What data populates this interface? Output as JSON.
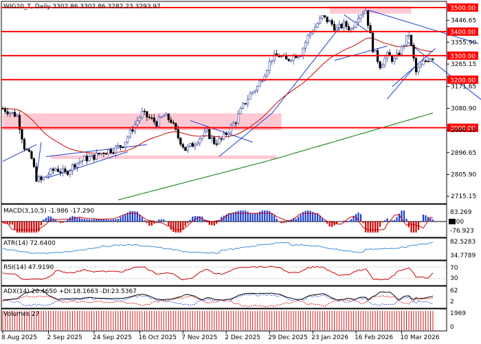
{
  "header": {
    "title": "WIG20_T, Daily  3302.86 3302.86 3282.23 3293.97"
  },
  "colors": {
    "bull": "#2a3a9a",
    "bear": "#000000",
    "support_line": "#ff0000",
    "zone": "#ffc0cb",
    "ema_short": "#cc0000",
    "ema_long": "#007700",
    "trend": "#1a3fd0",
    "macd_hist_pos": "#1a3fd0",
    "macd_hist_neg": "#cc0000",
    "atr_line": "#3a8fdd",
    "rsi_line": "#cc0000",
    "adx_line": "#000000",
    "volume": "#cc0000"
  },
  "price_axis": {
    "ticks": [
      "3446.65",
      "3355.90",
      "3265.15",
      "3171.65",
      "3080.90",
      "2990.15",
      "2896.65",
      "2805.90",
      "2715.15"
    ],
    "labeled_levels": [
      "3500.00",
      "3400.00",
      "3300.00",
      "3200.00",
      "3000.00"
    ]
  },
  "chart_data": {
    "type": "candlestick",
    "title": "WIG20_T, Daily  3302.86 3302.86 3282.23 3293.97",
    "x_dates": [
      "8 Aug 2025",
      "2 Sep 2025",
      "24 Sep 2025",
      "16 Oct 2025",
      "7 Nov 2025",
      "2 Dec 2025",
      "29 Dec 2025",
      "23 Jan 2026",
      "16 Feb 2026",
      "10 Mar 2026"
    ],
    "y_range": [
      2690,
      3520
    ],
    "support_resistance": [
      3500,
      3400,
      3300,
      3200,
      3000
    ],
    "close_path": [
      [
        0,
        3080
      ],
      [
        6,
        3050
      ],
      [
        9,
        2920
      ],
      [
        12,
        2870
      ],
      [
        14,
        2790
      ],
      [
        16,
        2780
      ],
      [
        18,
        2800
      ],
      [
        22,
        2830
      ],
      [
        26,
        2810
      ],
      [
        30,
        2850
      ],
      [
        34,
        2870
      ],
      [
        38,
        2880
      ],
      [
        42,
        2900
      ],
      [
        46,
        2910
      ],
      [
        50,
        2930
      ],
      [
        53,
        2980
      ],
      [
        56,
        3030
      ],
      [
        58,
        3060
      ],
      [
        61,
        3040
      ],
      [
        64,
        3020
      ],
      [
        67,
        3050
      ],
      [
        70,
        3030
      ],
      [
        73,
        2960
      ],
      [
        76,
        2910
      ],
      [
        79,
        2930
      ],
      [
        82,
        2960
      ],
      [
        85,
        2980
      ],
      [
        88,
        2940
      ],
      [
        91,
        2950
      ],
      [
        94,
        2990
      ],
      [
        97,
        3030
      ],
      [
        100,
        3090
      ],
      [
        103,
        3140
      ],
      [
        106,
        3170
      ],
      [
        109,
        3230
      ],
      [
        112,
        3290
      ],
      [
        115,
        3300
      ],
      [
        118,
        3280
      ],
      [
        121,
        3300
      ],
      [
        124,
        3310
      ],
      [
        127,
        3380
      ],
      [
        130,
        3420
      ],
      [
        133,
        3460
      ],
      [
        136,
        3440
      ],
      [
        139,
        3410
      ],
      [
        142,
        3430
      ],
      [
        145,
        3410
      ],
      [
        148,
        3470
      ],
      [
        151,
        3490
      ],
      [
        154,
        3330
      ],
      [
        157,
        3260
      ],
      [
        160,
        3300
      ],
      [
        163,
        3280
      ],
      [
        166,
        3330
      ],
      [
        169,
        3390
      ],
      [
        172,
        3230
      ],
      [
        175,
        3270
      ],
      [
        178,
        3294
      ]
    ],
    "indicators": [
      {
        "name": "MACD(3,10,5) -1.986 -17.290",
        "axis": [
          "83.269",
          "0.00",
          "-76.923"
        ]
      },
      {
        "name": "ATR(14) 72.6400",
        "axis": [
          "82.5283",
          "34.7789"
        ]
      },
      {
        "name": "RSI(14) 47.9190",
        "axis": [
          "70",
          "30"
        ]
      },
      {
        "name": "ADX(14) 20.4650 +DI:18.1663 -DI:23.5367",
        "axis": [
          "62",
          "2"
        ]
      },
      {
        "name": "Volumes 27",
        "axis": [
          "1969",
          "0"
        ]
      }
    ]
  }
}
